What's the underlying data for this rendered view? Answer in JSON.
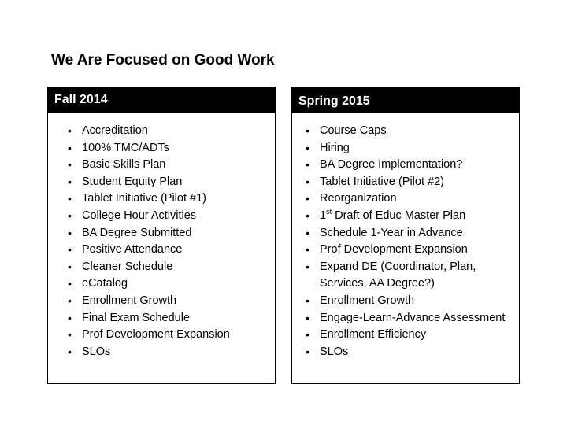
{
  "slide": {
    "title": "We Are Focused on Good Work"
  },
  "left_panel": {
    "heading": "Fall 2014",
    "items": [
      "Accreditation",
      "100% TMC/ADTs",
      "Basic Skills Plan",
      "Student Equity Plan",
      "Tablet Initiative (Pilot #1)",
      "College Hour Activities",
      "BA Degree Submitted",
      "Positive Attendance",
      "Cleaner Schedule",
      "eCatalog",
      "Enrollment Growth",
      "Final Exam Schedule",
      "Prof Development Expansion",
      "SLOs"
    ]
  },
  "right_panel": {
    "heading": "Spring 2015",
    "items": [
      "Course Caps",
      "Hiring",
      "BA Degree Implementation?",
      "Tablet Initiative (Pilot #2)",
      "Reorganization",
      {
        "prefix": "1",
        "sup": "st",
        "rest": " Draft of Educ Master Plan"
      },
      "Schedule 1-Year in Advance",
      "Prof Development Expansion",
      "Expand DE (Coordinator, Plan, Services, AA Degree?)",
      "Enrollment Growth",
      "Engage-Learn-Advance Assessment",
      "Enrollment Efficiency",
      "SLOs"
    ]
  },
  "bullet_char": "•"
}
